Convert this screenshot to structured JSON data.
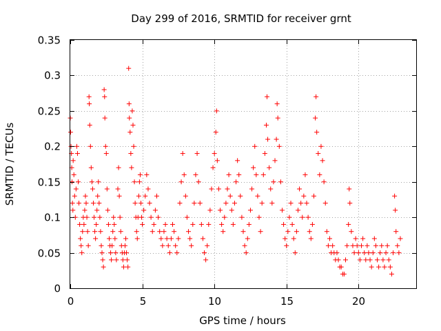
{
  "chart_data": {
    "type": "scatter",
    "title": "Day 299 of 2016, SRMTID for receiver grnt",
    "xlabel": "GPS time / hours",
    "ylabel": "SRMTID / TECUs",
    "xlim": [
      0,
      24
    ],
    "ylim": [
      0,
      0.35
    ],
    "x_ticks": [
      0,
      5,
      10,
      15,
      20
    ],
    "x_tick_labels": [
      "0",
      "5",
      "10",
      "15",
      "20"
    ],
    "y_ticks": [
      0,
      0.05,
      0.1,
      0.15,
      0.2,
      0.25,
      0.3,
      0.35
    ],
    "y_tick_labels": [
      "0",
      "0.05",
      "0.1",
      "0.15",
      "0.2",
      "0.25",
      "0.3",
      "0.35"
    ],
    "grid": true,
    "marker": "+",
    "color": "#ff0000",
    "series": [
      {
        "name": "SRMTID",
        "points": [
          [
            0.0,
            0.24
          ],
          [
            0.02,
            0.22
          ],
          [
            0.05,
            0.2
          ],
          [
            0.08,
            0.19
          ],
          [
            0.1,
            0.17
          ],
          [
            0.12,
            0.15
          ],
          [
            0.15,
            0.12
          ],
          [
            0.18,
            0.11
          ],
          [
            0.2,
            0.18
          ],
          [
            0.25,
            0.16
          ],
          [
            0.3,
            0.13
          ],
          [
            0.35,
            0.1
          ],
          [
            0.4,
            0.14
          ],
          [
            0.45,
            0.2
          ],
          [
            0.5,
            0.19
          ],
          [
            0.55,
            0.15
          ],
          [
            0.6,
            0.12
          ],
          [
            0.65,
            0.09
          ],
          [
            0.7,
            0.07
          ],
          [
            0.75,
            0.06
          ],
          [
            0.8,
            0.05
          ],
          [
            0.85,
            0.08
          ],
          [
            0.9,
            0.1
          ],
          [
            0.95,
            0.09
          ],
          [
            1.0,
            0.11
          ],
          [
            1.05,
            0.13
          ],
          [
            1.1,
            0.12
          ],
          [
            1.15,
            0.1
          ],
          [
            1.2,
            0.08
          ],
          [
            1.25,
            0.06
          ],
          [
            1.3,
            0.27
          ],
          [
            1.32,
            0.26
          ],
          [
            1.35,
            0.23
          ],
          [
            1.4,
            0.2
          ],
          [
            1.45,
            0.17
          ],
          [
            1.5,
            0.15
          ],
          [
            1.55,
            0.14
          ],
          [
            1.6,
            0.12
          ],
          [
            1.65,
            0.1
          ],
          [
            1.7,
            0.08
          ],
          [
            1.75,
            0.07
          ],
          [
            1.8,
            0.09
          ],
          [
            1.85,
            0.11
          ],
          [
            1.9,
            0.13
          ],
          [
            1.95,
            0.15
          ],
          [
            2.0,
            0.12
          ],
          [
            2.05,
            0.1
          ],
          [
            2.1,
            0.08
          ],
          [
            2.15,
            0.06
          ],
          [
            2.2,
            0.05
          ],
          [
            2.25,
            0.04
          ],
          [
            2.3,
            0.03
          ],
          [
            2.35,
            0.28
          ],
          [
            2.38,
            0.27
          ],
          [
            2.4,
            0.24
          ],
          [
            2.45,
            0.2
          ],
          [
            2.5,
            0.19
          ],
          [
            2.55,
            0.14
          ],
          [
            2.6,
            0.11
          ],
          [
            2.65,
            0.09
          ],
          [
            2.7,
            0.07
          ],
          [
            2.75,
            0.06
          ],
          [
            2.8,
            0.05
          ],
          [
            2.85,
            0.04
          ],
          [
            2.9,
            0.06
          ],
          [
            2.95,
            0.08
          ],
          [
            3.0,
            0.1
          ],
          [
            3.05,
            0.09
          ],
          [
            3.1,
            0.07
          ],
          [
            3.15,
            0.05
          ],
          [
            3.2,
            0.04
          ],
          [
            3.3,
            0.14
          ],
          [
            3.35,
            0.17
          ],
          [
            3.4,
            0.13
          ],
          [
            3.45,
            0.1
          ],
          [
            3.5,
            0.08
          ],
          [
            3.55,
            0.06
          ],
          [
            3.6,
            0.05
          ],
          [
            3.65,
            0.04
          ],
          [
            3.7,
            0.03
          ],
          [
            3.75,
            0.05
          ],
          [
            3.8,
            0.06
          ],
          [
            3.85,
            0.07
          ],
          [
            3.9,
            0.05
          ],
          [
            3.95,
            0.04
          ],
          [
            4.0,
            0.03
          ],
          [
            4.05,
            0.31
          ],
          [
            4.08,
            0.26
          ],
          [
            4.1,
            0.24
          ],
          [
            4.15,
            0.22
          ],
          [
            4.2,
            0.19
          ],
          [
            4.25,
            0.17
          ],
          [
            4.3,
            0.25
          ],
          [
            4.35,
            0.23
          ],
          [
            4.4,
            0.2
          ],
          [
            4.45,
            0.15
          ],
          [
            4.5,
            0.12
          ],
          [
            4.55,
            0.1
          ],
          [
            4.6,
            0.08
          ],
          [
            4.65,
            0.07
          ],
          [
            4.7,
            0.1
          ],
          [
            4.75,
            0.13
          ],
          [
            4.8,
            0.15
          ],
          [
            4.85,
            0.16
          ],
          [
            4.9,
            0.12
          ],
          [
            4.95,
            0.1
          ],
          [
            5.0,
            0.09
          ],
          [
            5.1,
            0.11
          ],
          [
            5.2,
            0.13
          ],
          [
            5.3,
            0.16
          ],
          [
            5.4,
            0.14
          ],
          [
            5.5,
            0.12
          ],
          [
            5.6,
            0.1
          ],
          [
            5.7,
            0.08
          ],
          [
            5.8,
            0.09
          ],
          [
            5.9,
            0.11
          ],
          [
            6.0,
            0.13
          ],
          [
            6.1,
            0.1
          ],
          [
            6.2,
            0.08
          ],
          [
            6.3,
            0.07
          ],
          [
            6.4,
            0.06
          ],
          [
            6.5,
            0.08
          ],
          [
            6.6,
            0.09
          ],
          [
            6.7,
            0.07
          ],
          [
            6.8,
            0.06
          ],
          [
            6.9,
            0.05
          ],
          [
            7.0,
            0.07
          ],
          [
            7.1,
            0.09
          ],
          [
            7.2,
            0.08
          ],
          [
            7.3,
            0.06
          ],
          [
            7.4,
            0.05
          ],
          [
            7.5,
            0.07
          ],
          [
            7.6,
            0.12
          ],
          [
            7.7,
            0.15
          ],
          [
            7.8,
            0.19
          ],
          [
            7.9,
            0.16
          ],
          [
            8.0,
            0.13
          ],
          [
            8.1,
            0.1
          ],
          [
            8.2,
            0.08
          ],
          [
            8.3,
            0.07
          ],
          [
            8.4,
            0.06
          ],
          [
            8.5,
            0.09
          ],
          [
            8.6,
            0.12
          ],
          [
            8.7,
            0.16
          ],
          [
            8.8,
            0.19
          ],
          [
            8.9,
            0.15
          ],
          [
            9.0,
            0.12
          ],
          [
            9.1,
            0.09
          ],
          [
            9.2,
            0.07
          ],
          [
            9.3,
            0.05
          ],
          [
            9.4,
            0.04
          ],
          [
            9.5,
            0.06
          ],
          [
            9.6,
            0.09
          ],
          [
            9.7,
            0.11
          ],
          [
            9.8,
            0.14
          ],
          [
            9.9,
            0.17
          ],
          [
            10.0,
            0.19
          ],
          [
            10.1,
            0.22
          ],
          [
            10.15,
            0.25
          ],
          [
            10.2,
            0.18
          ],
          [
            10.3,
            0.14
          ],
          [
            10.4,
            0.11
          ],
          [
            10.5,
            0.09
          ],
          [
            10.6,
            0.08
          ],
          [
            10.7,
            0.1
          ],
          [
            10.8,
            0.12
          ],
          [
            10.9,
            0.14
          ],
          [
            11.0,
            0.16
          ],
          [
            11.1,
            0.13
          ],
          [
            11.2,
            0.11
          ],
          [
            11.3,
            0.09
          ],
          [
            11.4,
            0.12
          ],
          [
            11.5,
            0.15
          ],
          [
            11.6,
            0.18
          ],
          [
            11.7,
            0.16
          ],
          [
            11.8,
            0.13
          ],
          [
            11.9,
            0.1
          ],
          [
            12.0,
            0.08
          ],
          [
            12.1,
            0.06
          ],
          [
            12.2,
            0.05
          ],
          [
            12.3,
            0.07
          ],
          [
            12.4,
            0.09
          ],
          [
            12.5,
            0.11
          ],
          [
            12.6,
            0.14
          ],
          [
            12.7,
            0.17
          ],
          [
            12.8,
            0.2
          ],
          [
            12.9,
            0.16
          ],
          [
            13.0,
            0.13
          ],
          [
            13.1,
            0.1
          ],
          [
            13.2,
            0.08
          ],
          [
            13.3,
            0.12
          ],
          [
            13.4,
            0.16
          ],
          [
            13.5,
            0.19
          ],
          [
            13.6,
            0.23
          ],
          [
            13.65,
            0.27
          ],
          [
            13.7,
            0.21
          ],
          [
            13.8,
            0.17
          ],
          [
            13.9,
            0.14
          ],
          [
            14.0,
            0.12
          ],
          [
            14.1,
            0.15
          ],
          [
            14.2,
            0.18
          ],
          [
            14.3,
            0.21
          ],
          [
            14.35,
            0.26
          ],
          [
            14.4,
            0.24
          ],
          [
            14.5,
            0.2
          ],
          [
            14.6,
            0.15
          ],
          [
            14.7,
            0.11
          ],
          [
            14.8,
            0.09
          ],
          [
            14.9,
            0.07
          ],
          [
            15.0,
            0.06
          ],
          [
            15.1,
            0.08
          ],
          [
            15.2,
            0.1
          ],
          [
            15.3,
            0.12
          ],
          [
            15.4,
            0.09
          ],
          [
            15.5,
            0.07
          ],
          [
            15.6,
            0.05
          ],
          [
            15.7,
            0.08
          ],
          [
            15.8,
            0.11
          ],
          [
            15.9,
            0.14
          ],
          [
            16.0,
            0.12
          ],
          [
            16.1,
            0.1
          ],
          [
            16.2,
            0.13
          ],
          [
            16.3,
            0.16
          ],
          [
            16.4,
            0.12
          ],
          [
            16.5,
            0.1
          ],
          [
            16.6,
            0.08
          ],
          [
            16.7,
            0.07
          ],
          [
            16.8,
            0.09
          ],
          [
            16.9,
            0.13
          ],
          [
            17.0,
            0.24
          ],
          [
            17.05,
            0.27
          ],
          [
            17.1,
            0.22
          ],
          [
            17.2,
            0.19
          ],
          [
            17.3,
            0.16
          ],
          [
            17.4,
            0.2
          ],
          [
            17.5,
            0.18
          ],
          [
            17.6,
            0.15
          ],
          [
            17.7,
            0.12
          ],
          [
            17.8,
            0.08
          ],
          [
            17.9,
            0.06
          ],
          [
            18.0,
            0.07
          ],
          [
            18.1,
            0.05
          ],
          [
            18.2,
            0.06
          ],
          [
            18.3,
            0.05
          ],
          [
            18.4,
            0.04
          ],
          [
            18.5,
            0.05
          ],
          [
            18.6,
            0.04
          ],
          [
            18.7,
            0.03
          ],
          [
            18.8,
            0.03
          ],
          [
            18.9,
            0.02
          ],
          [
            19.0,
            0.02
          ],
          [
            19.1,
            0.04
          ],
          [
            19.2,
            0.06
          ],
          [
            19.3,
            0.09
          ],
          [
            19.35,
            0.14
          ],
          [
            19.4,
            0.12
          ],
          [
            19.5,
            0.08
          ],
          [
            19.6,
            0.06
          ],
          [
            19.7,
            0.05
          ],
          [
            19.8,
            0.07
          ],
          [
            19.9,
            0.06
          ],
          [
            20.0,
            0.05
          ],
          [
            20.1,
            0.04
          ],
          [
            20.2,
            0.06
          ],
          [
            20.3,
            0.07
          ],
          [
            20.4,
            0.05
          ],
          [
            20.5,
            0.04
          ],
          [
            20.6,
            0.06
          ],
          [
            20.7,
            0.05
          ],
          [
            20.8,
            0.04
          ],
          [
            20.9,
            0.03
          ],
          [
            21.0,
            0.05
          ],
          [
            21.1,
            0.07
          ],
          [
            21.2,
            0.06
          ],
          [
            21.3,
            0.04
          ],
          [
            21.4,
            0.03
          ],
          [
            21.5,
            0.05
          ],
          [
            21.6,
            0.06
          ],
          [
            21.7,
            0.04
          ],
          [
            21.8,
            0.03
          ],
          [
            21.9,
            0.05
          ],
          [
            22.0,
            0.06
          ],
          [
            22.1,
            0.04
          ],
          [
            22.2,
            0.03
          ],
          [
            22.3,
            0.02
          ],
          [
            22.4,
            0.05
          ],
          [
            22.5,
            0.13
          ],
          [
            22.55,
            0.11
          ],
          [
            22.6,
            0.08
          ],
          [
            22.7,
            0.06
          ],
          [
            22.8,
            0.05
          ],
          [
            22.9,
            0.07
          ]
        ]
      }
    ]
  }
}
